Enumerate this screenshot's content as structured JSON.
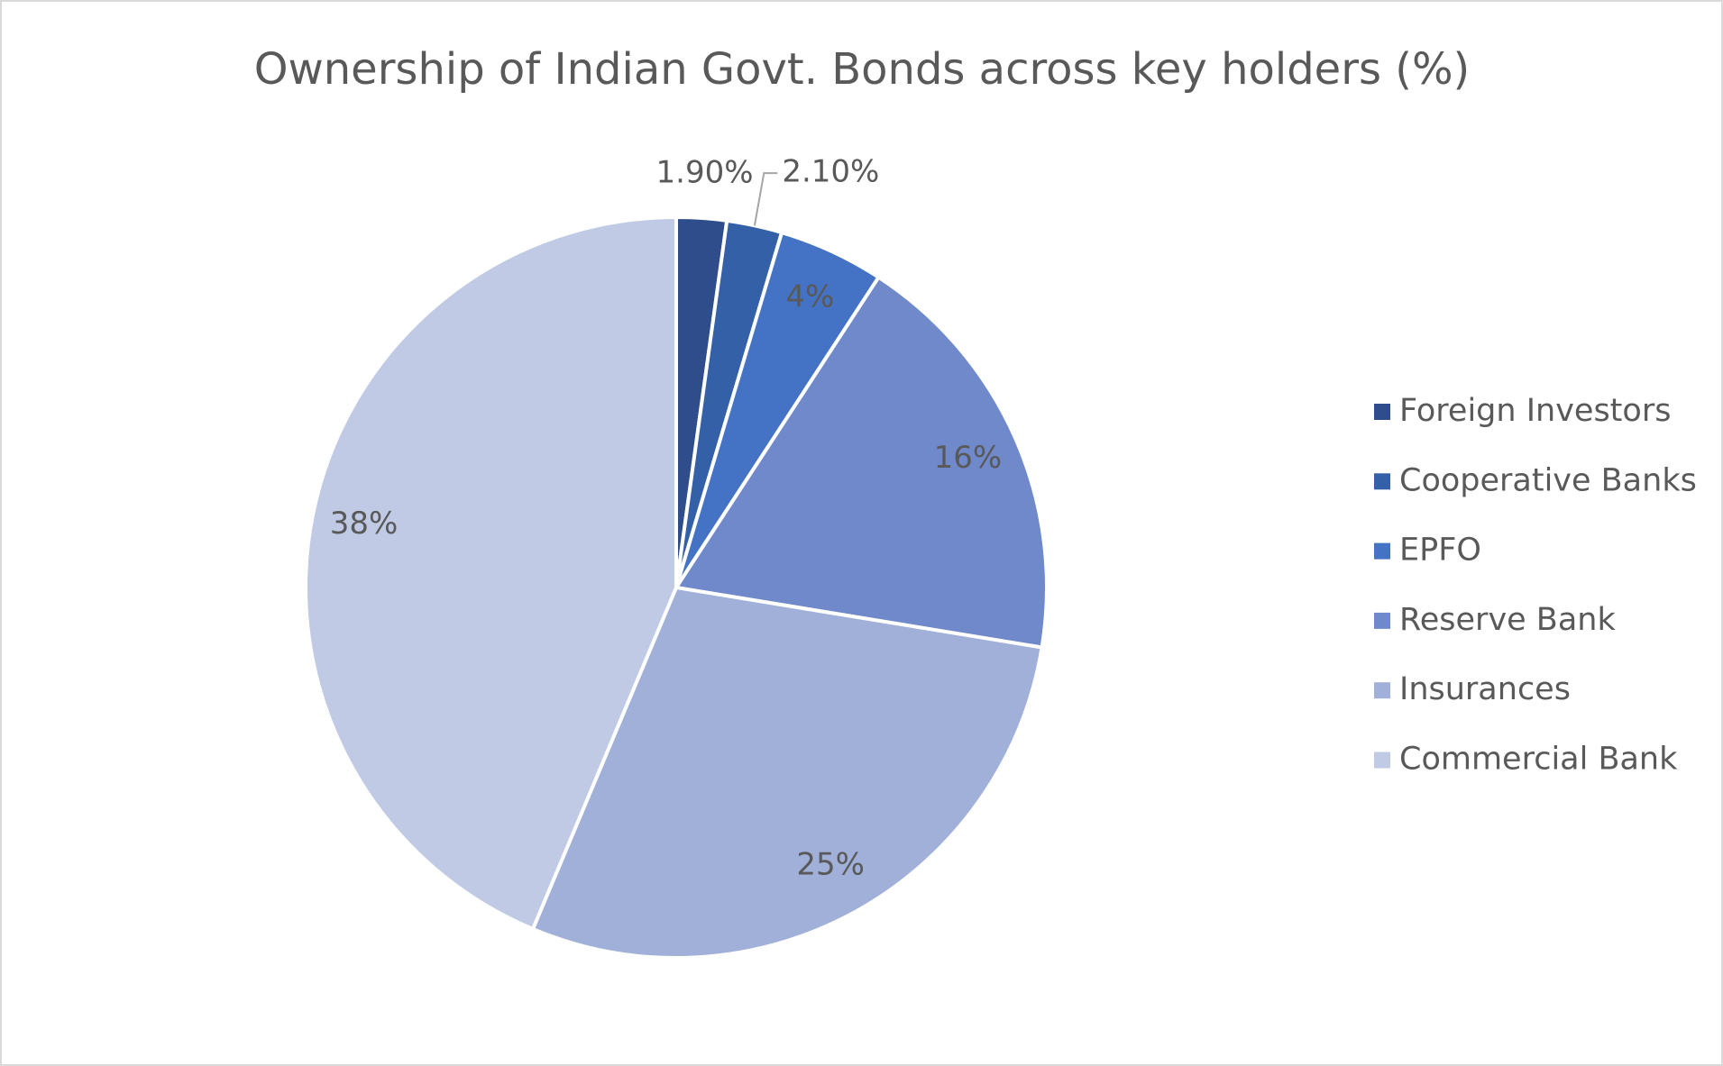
{
  "chart_data": {
    "type": "pie",
    "title": "Ownership of Indian Govt. Bonds across key holders (%)",
    "categories": [
      "Foreign Investors",
      "Cooperative Banks",
      "EPFO",
      "Reserve Bank",
      "Insurances",
      "Commercial Bank"
    ],
    "values": [
      1.9,
      2.1,
      4,
      16,
      25,
      38
    ],
    "value_labels": [
      "1.90%",
      "2.10%",
      "4%",
      "16%",
      "25%",
      "38%"
    ],
    "colors": [
      "#2e4d8a",
      "#3460a8",
      "#4472c4",
      "#6f89cb",
      "#a0b0d9",
      "#c0cae5"
    ],
    "legend": "right"
  }
}
